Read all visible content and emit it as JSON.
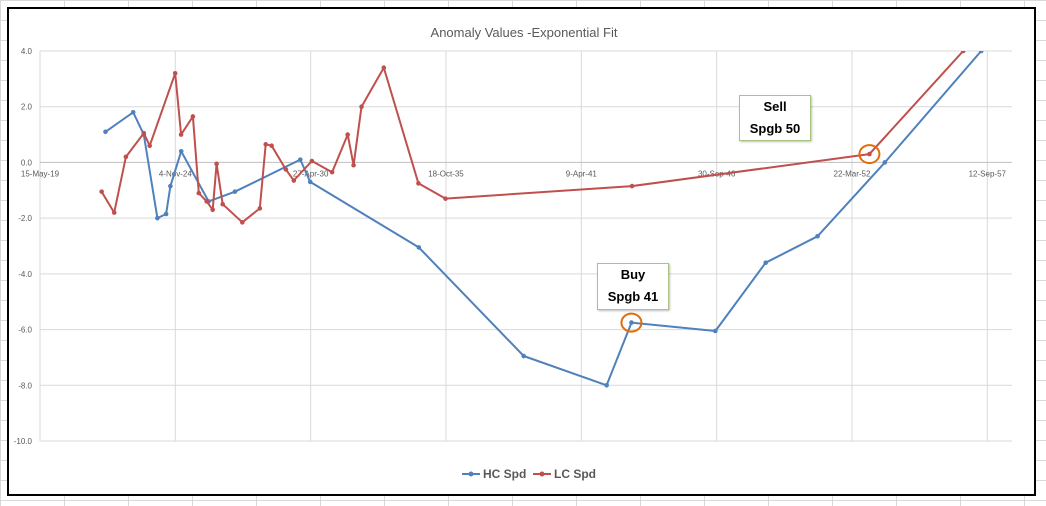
{
  "chart_data": {
    "type": "line",
    "title": "Anomaly Values -Exponential Fit",
    "xlabel": "",
    "ylabel": "",
    "x_axis": {
      "type": "date",
      "range": [
        "2019-05-15",
        "2058-09-12"
      ],
      "tick_labels": [
        "15-May-19",
        "4-Nov-24",
        "27-Apr-30",
        "18-Oct-35",
        "9-Apr-41",
        "30-Sep-46",
        "22-Mar-52",
        "12-Sep-57"
      ],
      "tick_dates": [
        "2019-05-15",
        "2024-11-04",
        "2030-04-27",
        "2035-10-18",
        "2041-04-09",
        "2046-09-30",
        "2052-03-22",
        "2057-09-12"
      ]
    },
    "y_axis": {
      "range": [
        -10,
        4
      ],
      "tick_values": [
        -10,
        -8,
        -6,
        -4,
        -2,
        0,
        2,
        4
      ],
      "tick_labels": [
        "-10.0",
        "-8.0",
        "-6.0",
        "-4.0",
        "-2.0",
        "0.0",
        "2.0",
        "4.0"
      ]
    },
    "grid": true,
    "legend_placement": "bottom",
    "series": [
      {
        "name": "HC Spd",
        "color": "#4f81bd",
        "points": [
          [
            "2022-01-07",
            1.1
          ],
          [
            "2023-02-20",
            1.8
          ],
          [
            "2023-07-27",
            1.0
          ],
          [
            "2024-02-13",
            -2.0
          ],
          [
            "2024-06-21",
            -1.85
          ],
          [
            "2024-08-23",
            -0.85
          ],
          [
            "2025-01-30",
            0.4
          ],
          [
            "2026-03-10",
            -1.4
          ],
          [
            "2027-04-03",
            -1.05
          ],
          [
            "2029-11-25",
            0.1
          ],
          [
            "2030-04-20",
            -0.7
          ],
          [
            "2034-09-11",
            -3.05
          ],
          [
            "2038-12-09",
            -6.95
          ],
          [
            "2042-04-18",
            -8.0
          ],
          [
            "2043-04-20",
            -5.75
          ],
          [
            "2046-09-11",
            -6.05
          ],
          [
            "2048-09-24",
            -3.6
          ],
          [
            "2050-10-30",
            -2.65
          ],
          [
            "2053-07-21",
            0.0
          ],
          [
            "2057-06-14",
            4.0
          ]
        ]
      },
      {
        "name": "LC Spd",
        "color": "#c0504d",
        "points": [
          [
            "2021-11-11",
            -1.05
          ],
          [
            "2022-05-16",
            -1.8
          ],
          [
            "2022-11-04",
            0.2
          ],
          [
            "2023-07-27",
            1.05
          ],
          [
            "2023-10-22",
            0.6
          ],
          [
            "2024-11-02",
            3.2
          ],
          [
            "2025-01-28",
            1.0
          ],
          [
            "2025-07-21",
            1.65
          ],
          [
            "2025-10-17",
            -1.1
          ],
          [
            "2026-02-10",
            -1.4
          ],
          [
            "2026-05-10",
            -1.7
          ],
          [
            "2026-07-07",
            -0.05
          ],
          [
            "2026-10-05",
            -1.5
          ],
          [
            "2027-07-22",
            -2.15
          ],
          [
            "2028-04-06",
            -1.65
          ],
          [
            "2028-07-02",
            0.65
          ],
          [
            "2028-09-27",
            0.6
          ],
          [
            "2029-04-25",
            -0.25
          ],
          [
            "2029-08-21",
            -0.65
          ],
          [
            "2030-05-15",
            0.05
          ],
          [
            "2031-03-10",
            -0.35
          ],
          [
            "2031-10-26",
            1.0
          ],
          [
            "2032-01-21",
            -0.1
          ],
          [
            "2032-05-18",
            2.0
          ],
          [
            "2033-04-12",
            3.4
          ],
          [
            "2034-09-06",
            -0.75
          ],
          [
            "2035-10-11",
            -1.3
          ],
          [
            "2043-04-28",
            -0.85
          ],
          [
            "2052-12-05",
            0.3
          ],
          [
            "2056-09-21",
            4.0
          ]
        ]
      }
    ],
    "annotations": [
      {
        "line1": "Buy",
        "line2": "Spgb 41",
        "target_date": "2043-04-20",
        "target_value": -5.75,
        "circle_color": "#e36c09"
      },
      {
        "line1": "Sell",
        "line2": "Spgb 50",
        "target_date": "2052-12-05",
        "target_value": 0.3,
        "circle_color": "#e36c09"
      }
    ]
  }
}
